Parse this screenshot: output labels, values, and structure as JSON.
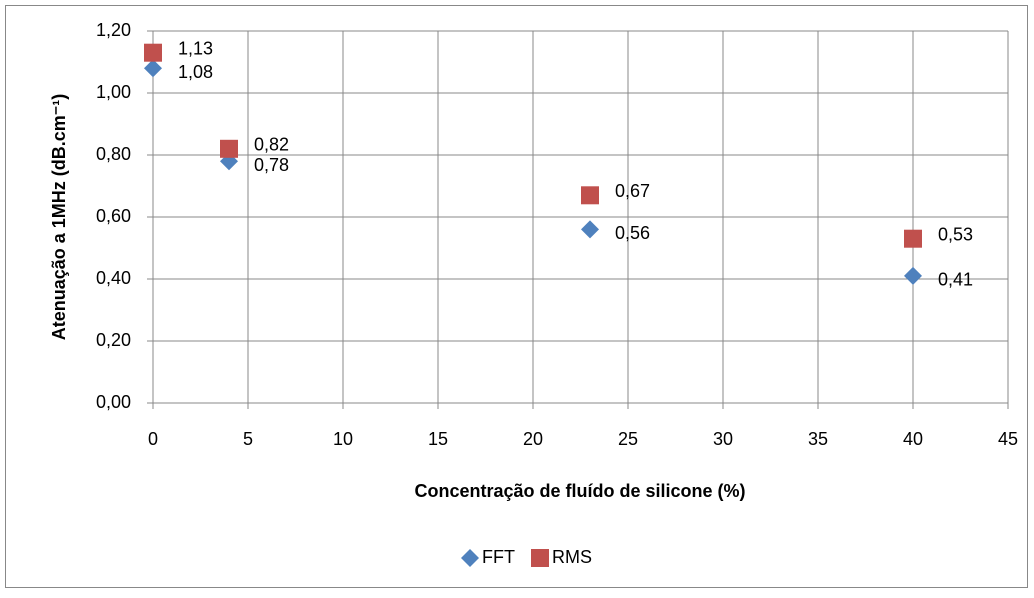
{
  "chart_data": {
    "type": "scatter",
    "x_label": "Concentração de fluído de silicone (%)",
    "y_label": "Atenuação a 1MHz (dB.cm⁻¹)",
    "x": [
      0,
      4,
      23,
      40
    ],
    "series": [
      {
        "name": "FFT",
        "color": "#4f81bd",
        "marker": "diamond",
        "values": [
          1.08,
          0.78,
          0.56,
          0.41
        ],
        "value_labels": [
          "1,08",
          "0,78",
          "0,56",
          "0,41"
        ]
      },
      {
        "name": "RMS",
        "color": "#c0504d",
        "marker": "square",
        "values": [
          1.13,
          0.82,
          0.67,
          0.53
        ],
        "value_labels": [
          "1,13",
          "0,82",
          "0,67",
          "0,53"
        ]
      }
    ],
    "xlim": [
      0,
      45
    ],
    "xticks": [
      0,
      5,
      10,
      15,
      20,
      25,
      30,
      35,
      40,
      45
    ],
    "ylim": [
      0,
      1.2
    ],
    "yticks": [
      {
        "value": 0,
        "label": "0,00"
      },
      {
        "value": 0.2,
        "label": "0,20"
      },
      {
        "value": 0.4,
        "label": "0,40"
      },
      {
        "value": 0.6,
        "label": "0,60"
      },
      {
        "value": 0.8,
        "label": "0,80"
      },
      {
        "value": 1.0,
        "label": "1,00"
      },
      {
        "value": 1.2,
        "label": "1,20"
      }
    ],
    "grid": true,
    "legend": "bottom"
  }
}
